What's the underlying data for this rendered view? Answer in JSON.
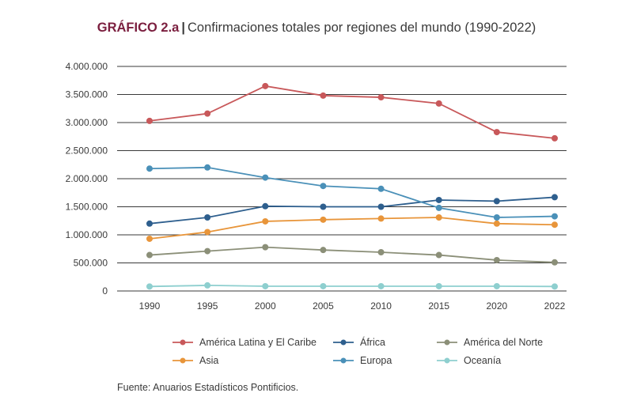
{
  "header": {
    "tag": "GRÁFICO 2.a",
    "separator": "|",
    "title": "Confirmaciones totales por regiones del mundo (1990-2022)"
  },
  "footer": {
    "source": "Fuente: Anuarios Estadísticos Pontificios."
  },
  "chart_data": {
    "type": "line",
    "title": "Confirmaciones totales por regiones del mundo (1990-2022)",
    "xlabel": "",
    "ylabel": "",
    "x": [
      "1990",
      "1995",
      "2000",
      "2005",
      "2010",
      "2015",
      "2020",
      "2022"
    ],
    "y_ticks": [
      "0",
      "500.000",
      "1.000.000",
      "1.500.000",
      "2.000.000",
      "2.500.000",
      "3.000.000",
      "3.500.000",
      "4.000.000"
    ],
    "ylim": [
      0,
      4000000
    ],
    "grid": "horizontal",
    "legend_position": "bottom",
    "series": [
      {
        "name": "América Latina y El Caribe",
        "color": "#c8585a",
        "values": [
          3030000,
          3160000,
          3650000,
          3480000,
          3450000,
          3340000,
          2830000,
          2720000
        ]
      },
      {
        "name": "África",
        "color": "#2e5f8e",
        "values": [
          1200000,
          1310000,
          1510000,
          1500000,
          1500000,
          1620000,
          1600000,
          1670000
        ]
      },
      {
        "name": "América del Norte",
        "color": "#8b8f78",
        "values": [
          640000,
          710000,
          780000,
          730000,
          690000,
          640000,
          550000,
          510000
        ]
      },
      {
        "name": "Asia",
        "color": "#e8953a",
        "values": [
          930000,
          1050000,
          1240000,
          1270000,
          1290000,
          1310000,
          1200000,
          1180000
        ]
      },
      {
        "name": "Europa",
        "color": "#4a90b8",
        "values": [
          2180000,
          2200000,
          2020000,
          1870000,
          1820000,
          1480000,
          1310000,
          1330000
        ]
      },
      {
        "name": "Oceanía",
        "color": "#8ecfcf",
        "values": [
          80000,
          100000,
          85000,
          85000,
          85000,
          85000,
          85000,
          80000
        ]
      }
    ]
  }
}
